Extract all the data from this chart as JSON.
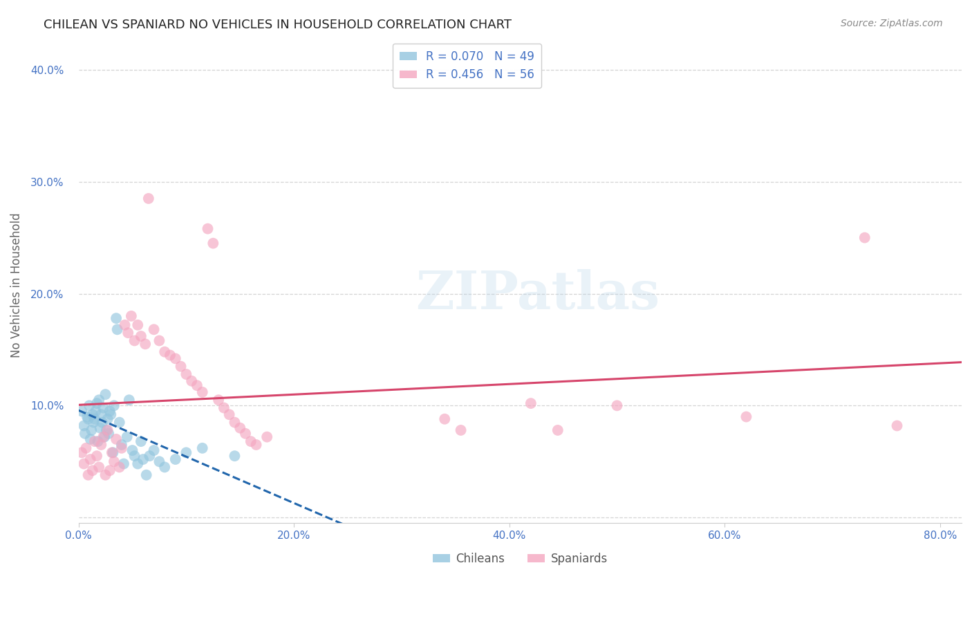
{
  "title": "CHILEAN VS SPANIARD NO VEHICLES IN HOUSEHOLD CORRELATION CHART",
  "source": "Source: ZipAtlas.com",
  "ylabel": "No Vehicles in Household",
  "xlim": [
    0.0,
    0.82
  ],
  "ylim": [
    -0.005,
    0.42
  ],
  "xticks": [
    0.0,
    0.2,
    0.4,
    0.6,
    0.8
  ],
  "yticks": [
    0.0,
    0.1,
    0.2,
    0.3,
    0.4
  ],
  "xticklabels": [
    "0.0%",
    "20.0%",
    "40.0%",
    "60.0%",
    "80.0%"
  ],
  "yticklabels": [
    "",
    "10.0%",
    "20.0%",
    "30.0%",
    "40.0%"
  ],
  "r_chilean": 0.07,
  "n_chilean": 49,
  "r_spaniard": 0.456,
  "n_spaniard": 56,
  "chilean_color": "#92c5de",
  "spaniard_color": "#f4a6c0",
  "chilean_line_color": "#2166ac",
  "spaniard_line_color": "#d6456b",
  "watermark": "ZIPatlas",
  "background_color": "#ffffff",
  "grid_color": "#d0d0d0",
  "chilean_x": [
    0.003,
    0.005,
    0.006,
    0.008,
    0.009,
    0.01,
    0.011,
    0.012,
    0.013,
    0.014,
    0.015,
    0.016,
    0.017,
    0.018,
    0.019,
    0.02,
    0.021,
    0.022,
    0.023,
    0.024,
    0.025,
    0.026,
    0.027,
    0.028,
    0.029,
    0.03,
    0.032,
    0.033,
    0.035,
    0.036,
    0.038,
    0.04,
    0.042,
    0.045,
    0.047,
    0.05,
    0.052,
    0.055,
    0.058,
    0.06,
    0.063,
    0.066,
    0.07,
    0.075,
    0.08,
    0.09,
    0.1,
    0.115,
    0.145
  ],
  "chilean_y": [
    0.095,
    0.082,
    0.075,
    0.09,
    0.088,
    0.1,
    0.07,
    0.078,
    0.092,
    0.085,
    0.088,
    0.095,
    0.102,
    0.068,
    0.105,
    0.08,
    0.092,
    0.085,
    0.098,
    0.072,
    0.11,
    0.078,
    0.088,
    0.075,
    0.095,
    0.092,
    0.058,
    0.1,
    0.178,
    0.168,
    0.085,
    0.065,
    0.048,
    0.072,
    0.105,
    0.06,
    0.055,
    0.048,
    0.068,
    0.052,
    0.038,
    0.055,
    0.06,
    0.05,
    0.045,
    0.052,
    0.058,
    0.062,
    0.055
  ],
  "spaniard_x": [
    0.003,
    0.005,
    0.007,
    0.009,
    0.011,
    0.013,
    0.015,
    0.017,
    0.019,
    0.021,
    0.023,
    0.025,
    0.027,
    0.029,
    0.031,
    0.033,
    0.035,
    0.038,
    0.04,
    0.043,
    0.046,
    0.049,
    0.052,
    0.055,
    0.058,
    0.062,
    0.065,
    0.07,
    0.075,
    0.08,
    0.085,
    0.09,
    0.095,
    0.1,
    0.105,
    0.11,
    0.115,
    0.12,
    0.125,
    0.13,
    0.135,
    0.14,
    0.145,
    0.15,
    0.155,
    0.16,
    0.165,
    0.175,
    0.34,
    0.355,
    0.42,
    0.445,
    0.5,
    0.62,
    0.73,
    0.76
  ],
  "spaniard_y": [
    0.058,
    0.048,
    0.062,
    0.038,
    0.052,
    0.042,
    0.068,
    0.055,
    0.045,
    0.065,
    0.072,
    0.038,
    0.078,
    0.042,
    0.058,
    0.05,
    0.07,
    0.045,
    0.062,
    0.172,
    0.165,
    0.18,
    0.158,
    0.172,
    0.162,
    0.155,
    0.285,
    0.168,
    0.158,
    0.148,
    0.145,
    0.142,
    0.135,
    0.128,
    0.122,
    0.118,
    0.112,
    0.258,
    0.245,
    0.105,
    0.098,
    0.092,
    0.085,
    0.08,
    0.075,
    0.068,
    0.065,
    0.072,
    0.088,
    0.078,
    0.102,
    0.078,
    0.1,
    0.09,
    0.25,
    0.082
  ]
}
